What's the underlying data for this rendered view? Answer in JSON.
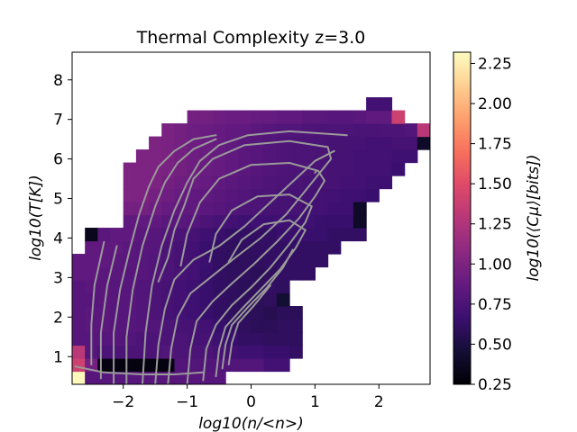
{
  "chart_data": {
    "type": "heatmap",
    "title": "Thermal Complexity z=3.0",
    "xlabel": "log10(n/<n>)",
    "ylabel": "log10(T[K])",
    "colorbar_label": "log10(⟨Cμ⟩[bits])",
    "colormap": "magma",
    "xlim": [
      -2.8,
      2.8
    ],
    "ylim": [
      0.3,
      8.7
    ],
    "clim": [
      0.25,
      2.32
    ],
    "x_ticks": [
      -2,
      -1,
      0,
      1,
      2
    ],
    "x_tick_labels": [
      "−2",
      "−1",
      "0",
      "1",
      "2"
    ],
    "y_ticks": [
      1,
      2,
      3,
      4,
      5,
      6,
      7,
      8
    ],
    "y_tick_labels": [
      "1",
      "2",
      "3",
      "4",
      "5",
      "6",
      "7",
      "8"
    ],
    "colorbar_ticks": [
      0.25,
      0.5,
      0.75,
      1.0,
      1.25,
      1.5,
      1.75,
      2.0,
      2.25
    ],
    "colorbar_tick_labels": [
      "0.25",
      "0.50",
      "0.75",
      "1.00",
      "1.25",
      "1.50",
      "1.75",
      "2.00",
      "2.25"
    ],
    "grid": false,
    "bins": {
      "x_start": -2.8,
      "dx": 0.2,
      "y_start": 0.3,
      "dy": 0.33,
      "rows": [
        {
          "x0": -2.8,
          "values": [
            2.3,
            0.8,
            0.8,
            0.8,
            0.8,
            0.8,
            0.8,
            0.8,
            0.8,
            0.8,
            0.8,
            0.8
          ]
        },
        {
          "x0": -2.8,
          "values": [
            1.4,
            0.95,
            0.3,
            0.3,
            0.3,
            0.3,
            0.3,
            0.3,
            0.78,
            0.78,
            0.78,
            0.78,
            0.78,
            0.78,
            0.78,
            0.7,
            0.7
          ]
        },
        {
          "x0": -2.8,
          "values": [
            1.3,
            0.8,
            0.75,
            0.75,
            0.75,
            0.75,
            0.75,
            0.78,
            0.75,
            0.75,
            0.75,
            0.72,
            0.7,
            0.68,
            0.68,
            0.65,
            0.65,
            0.62
          ]
        },
        {
          "x0": -2.8,
          "values": [
            0.8,
            0.8,
            0.8,
            0.8,
            0.78,
            0.75,
            0.75,
            0.75,
            0.75,
            0.72,
            0.72,
            0.68,
            0.65,
            0.62,
            0.62,
            0.6,
            0.6,
            0.6
          ]
        },
        {
          "x0": -2.8,
          "values": [
            0.8,
            0.82,
            0.82,
            0.8,
            0.8,
            0.78,
            0.78,
            0.75,
            0.72,
            0.72,
            0.7,
            0.65,
            0.62,
            0.6,
            0.58,
            0.58,
            0.6,
            0.6
          ]
        },
        {
          "x0": -2.8,
          "values": [
            0.8,
            0.82,
            0.82,
            0.8,
            0.8,
            0.78,
            0.75,
            0.72,
            0.7,
            0.68,
            0.65,
            0.62,
            0.6,
            0.58,
            0.58,
            0.55,
            0.58,
            0.58
          ]
        },
        {
          "x0": -2.8,
          "values": [
            0.8,
            0.8,
            0.82,
            0.8,
            0.8,
            0.78,
            0.75,
            0.72,
            0.7,
            0.68,
            0.65,
            0.62,
            0.6,
            0.6,
            0.58,
            0.6,
            0.45
          ]
        },
        {
          "x0": -2.8,
          "values": [
            0.8,
            0.82,
            0.82,
            0.8,
            0.8,
            0.78,
            0.75,
            0.72,
            0.7,
            0.68,
            0.65,
            0.62,
            0.6,
            0.58,
            0.6,
            0.62,
            0.6
          ]
        },
        {
          "x0": -2.8,
          "values": [
            0.85,
            0.85,
            0.82,
            0.82,
            0.8,
            0.8,
            0.78,
            0.75,
            0.72,
            0.7,
            0.65,
            0.62,
            0.6,
            0.6,
            0.58,
            0.6,
            0.62,
            0.62,
            0.62
          ]
        },
        {
          "x0": -2.8,
          "values": [
            0.85,
            0.85,
            0.85,
            0.82,
            0.82,
            0.8,
            0.78,
            0.75,
            0.72,
            0.7,
            0.66,
            0.62,
            0.6,
            0.6,
            0.6,
            0.62,
            0.62,
            0.62,
            0.62,
            0.62
          ]
        },
        {
          "x0": -2.6,
          "values": [
            0.85,
            0.85,
            0.85,
            0.82,
            0.8,
            0.8,
            0.75,
            0.72,
            0.7,
            0.65,
            0.62,
            0.6,
            0.6,
            0.62,
            0.62,
            0.62,
            0.62,
            0.62,
            0.62,
            0.62
          ]
        },
        {
          "x0": -2.6,
          "values": [
            0.35,
            0.82,
            0.85,
            0.85,
            0.82,
            0.8,
            0.78,
            0.75,
            0.72,
            0.68,
            0.65,
            0.62,
            0.62,
            0.62,
            0.62,
            0.65,
            0.65,
            0.65,
            0.65,
            0.62,
            0.62,
            0.62
          ]
        },
        {
          "x0": -2.0,
          "values": [
            0.85,
            0.85,
            0.85,
            0.82,
            0.82,
            0.8,
            0.75,
            0.72,
            0.7,
            0.68,
            0.68,
            0.68,
            0.68,
            0.68,
            0.68,
            0.65,
            0.65,
            0.65,
            0.4
          ]
        },
        {
          "x0": -2.0,
          "values": [
            0.95,
            0.95,
            0.92,
            0.88,
            0.85,
            0.85,
            0.82,
            0.8,
            0.78,
            0.75,
            0.75,
            0.72,
            0.72,
            0.72,
            0.7,
            0.7,
            0.68,
            0.68,
            0.4
          ]
        },
        {
          "x0": -2.0,
          "values": [
            1.0,
            1.0,
            0.95,
            0.92,
            0.88,
            0.86,
            0.85,
            0.82,
            0.8,
            0.78,
            0.75,
            0.75,
            0.72,
            0.72,
            0.72,
            0.7,
            0.7,
            0.68,
            0.68,
            0.65
          ]
        },
        {
          "x0": -2.0,
          "values": [
            1.0,
            1.0,
            1.0,
            0.95,
            0.92,
            0.9,
            0.88,
            0.85,
            0.82,
            0.8,
            0.78,
            0.76,
            0.75,
            0.74,
            0.72,
            0.72,
            0.72,
            0.7,
            0.7,
            0.68,
            0.68
          ]
        },
        {
          "x0": -2.0,
          "values": [
            1.0,
            1.0,
            1.0,
            0.98,
            0.95,
            0.92,
            0.9,
            0.88,
            0.85,
            0.82,
            0.8,
            0.78,
            0.76,
            0.75,
            0.75,
            0.74,
            0.72,
            0.72,
            0.7,
            0.7,
            0.7,
            0.66
          ]
        },
        {
          "x0": -1.8,
          "values": [
            1.0,
            1.0,
            0.98,
            0.95,
            0.92,
            0.9,
            0.88,
            0.85,
            0.82,
            0.8,
            0.78,
            0.76,
            0.75,
            0.75,
            0.74,
            0.72,
            0.72,
            0.7,
            0.7,
            0.7,
            0.68,
            0.68
          ]
        },
        {
          "x0": -1.6,
          "values": [
            1.0,
            0.98,
            0.95,
            0.92,
            0.9,
            0.88,
            0.85,
            0.82,
            0.8,
            0.78,
            0.76,
            0.75,
            0.75,
            0.74,
            0.72,
            0.72,
            0.72,
            0.7,
            0.7,
            0.72,
            0.72,
            0.4
          ]
        },
        {
          "x0": -1.4,
          "values": [
            0.98,
            0.95,
            0.92,
            0.9,
            0.88,
            0.86,
            0.85,
            0.82,
            0.8,
            0.78,
            0.78,
            0.76,
            0.75,
            0.75,
            0.75,
            0.74,
            0.74,
            0.75,
            0.75,
            0.78,
            1.3
          ]
        },
        {
          "x0": -1.0,
          "values": [
            0.95,
            0.95,
            0.92,
            0.9,
            0.9,
            0.88,
            0.88,
            0.85,
            0.85,
            0.82,
            0.82,
            0.8,
            0.8,
            0.82,
            0.85,
            0.85,
            1.4
          ]
        },
        {
          "x0": 1.8,
          "values": [
            0.7,
            0.7
          ]
        }
      ]
    },
    "contours": [
      [
        [
          -1.7,
          0.3
        ],
        [
          -1.65,
          1.6
        ],
        [
          -1.55,
          2.8
        ],
        [
          -1.4,
          3.8
        ],
        [
          -1.2,
          4.7
        ],
        [
          -1.0,
          5.4
        ],
        [
          -0.8,
          5.95
        ],
        [
          -0.5,
          6.35
        ],
        [
          -0.05,
          6.6
        ],
        [
          0.6,
          6.7
        ],
        [
          1.5,
          6.6
        ]
      ],
      [
        [
          -1.95,
          0.3
        ],
        [
          -1.95,
          1.5
        ],
        [
          -1.85,
          2.7
        ],
        [
          -1.7,
          3.8
        ],
        [
          -1.5,
          4.8
        ],
        [
          -1.35,
          5.4
        ],
        [
          -1.15,
          5.9
        ],
        [
          -0.9,
          6.25
        ],
        [
          -0.55,
          6.5
        ]
      ],
      [
        [
          -2.15,
          0.3
        ],
        [
          -2.15,
          1.6
        ],
        [
          -2.05,
          2.7
        ],
        [
          -1.9,
          3.7
        ],
        [
          -1.75,
          4.6
        ],
        [
          -1.6,
          5.3
        ],
        [
          -1.45,
          5.8
        ],
        [
          -1.2,
          6.2
        ],
        [
          -0.9,
          6.5
        ],
        [
          -0.55,
          6.6
        ]
      ],
      [
        [
          -2.35,
          0.45
        ],
        [
          -2.35,
          1.6
        ],
        [
          -2.25,
          2.8
        ],
        [
          -2.1,
          3.8
        ]
      ],
      [
        [
          -2.5,
          0.8
        ],
        [
          -2.5,
          1.8
        ],
        [
          -2.45,
          2.8
        ],
        [
          -2.3,
          3.9
        ]
      ],
      [
        [
          -2.75,
          0.75
        ],
        [
          -2.3,
          0.6
        ],
        [
          -1.7,
          0.55
        ],
        [
          -1.2,
          0.55
        ],
        [
          -0.75,
          0.6
        ]
      ],
      [
        [
          -1.5,
          0.3
        ],
        [
          -1.45,
          1.3
        ],
        [
          -1.35,
          2.2
        ],
        [
          -1.2,
          2.95
        ],
        [
          -0.9,
          3.45
        ],
        [
          -0.5,
          3.8
        ],
        [
          -0.1,
          4.3
        ],
        [
          0.3,
          4.9
        ],
        [
          0.7,
          5.5
        ],
        [
          1.0,
          5.95
        ],
        [
          1.3,
          6.2
        ]
      ],
      [
        [
          -1.3,
          0.3
        ],
        [
          -1.25,
          1.2
        ],
        [
          -1.15,
          2.0
        ],
        [
          -0.95,
          2.6
        ],
        [
          -0.6,
          3.05
        ],
        [
          -0.25,
          3.5
        ],
        [
          0.15,
          4.0
        ],
        [
          0.55,
          4.6
        ],
        [
          0.85,
          5.2
        ],
        [
          1.1,
          5.7
        ],
        [
          1.25,
          6.0
        ],
        [
          1.2,
          6.3
        ],
        [
          0.6,
          6.45
        ],
        [
          -0.1,
          6.35
        ],
        [
          -0.6,
          6.0
        ],
        [
          -0.9,
          5.5
        ],
        [
          -1.05,
          4.8
        ],
        [
          -1.2,
          4.2
        ],
        [
          -1.3,
          3.5
        ],
        [
          -1.45,
          2.9
        ]
      ],
      [
        [
          -1.0,
          0.3
        ],
        [
          -0.95,
          1.2
        ],
        [
          -0.85,
          1.9
        ],
        [
          -0.6,
          2.4
        ],
        [
          -0.3,
          2.85
        ],
        [
          0.05,
          3.35
        ],
        [
          0.4,
          3.9
        ],
        [
          0.75,
          4.5
        ],
        [
          1.0,
          5.05
        ],
        [
          1.15,
          5.45
        ],
        [
          1.05,
          5.7
        ],
        [
          0.6,
          5.9
        ],
        [
          0.0,
          5.85
        ],
        [
          -0.5,
          5.5
        ],
        [
          -0.8,
          4.9
        ],
        [
          -1.0,
          4.1
        ],
        [
          -1.1,
          3.3
        ]
      ],
      [
        [
          -0.75,
          0.4
        ],
        [
          -0.7,
          1.2
        ],
        [
          -0.55,
          1.8
        ],
        [
          -0.3,
          2.3
        ],
        [
          0.0,
          2.75
        ],
        [
          0.3,
          3.25
        ],
        [
          0.6,
          3.85
        ],
        [
          0.85,
          4.4
        ],
        [
          0.95,
          4.8
        ],
        [
          0.6,
          5.1
        ],
        [
          0.1,
          5.05
        ],
        [
          -0.3,
          4.7
        ],
        [
          -0.55,
          4.1
        ],
        [
          -0.65,
          3.4
        ]
      ],
      [
        [
          -0.55,
          0.5
        ],
        [
          -0.5,
          1.2
        ],
        [
          -0.4,
          1.75
        ],
        [
          -0.15,
          2.2
        ],
        [
          0.15,
          2.7
        ],
        [
          0.45,
          3.2
        ],
        [
          0.7,
          3.75
        ],
        [
          0.85,
          4.2
        ],
        [
          0.6,
          4.45
        ],
        [
          0.2,
          4.35
        ],
        [
          -0.15,
          3.95
        ],
        [
          -0.35,
          3.4
        ]
      ],
      [
        [
          -0.45,
          0.7
        ],
        [
          -0.4,
          1.3
        ],
        [
          -0.3,
          1.8
        ],
        [
          -0.05,
          2.25
        ],
        [
          0.25,
          2.75
        ],
        [
          0.5,
          3.25
        ],
        [
          0.65,
          3.7
        ]
      ],
      [
        [
          -0.35,
          0.8
        ],
        [
          -0.3,
          1.35
        ],
        [
          -0.2,
          1.85
        ],
        [
          0.05,
          2.3
        ],
        [
          0.3,
          2.8
        ]
      ],
      [
        [
          1.0,
          5.65
        ],
        [
          1.02,
          5.7
        ]
      ]
    ]
  }
}
